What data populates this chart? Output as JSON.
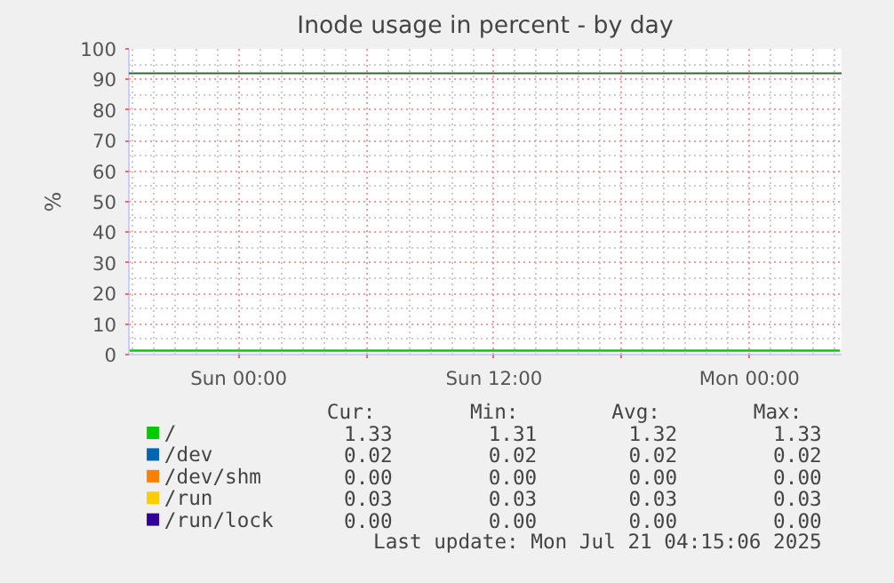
{
  "chart_data": {
    "type": "line",
    "title": "Inode usage in percent - by day",
    "ylabel": "%",
    "x": [
      "2025-07-19T18:50",
      "2025-07-21T04:15"
    ],
    "xlim": [
      "2025-07-19T18:50",
      "2025-07-21T04:20"
    ],
    "xticks": [
      {
        "value": "2025-07-20T00:00",
        "label": "Sun 00:00"
      },
      {
        "value": "2025-07-20T06:00",
        "label": null
      },
      {
        "value": "2025-07-20T12:00",
        "label": "Sun 12:00"
      },
      {
        "value": "2025-07-20T18:00",
        "label": null
      },
      {
        "value": "2025-07-21T00:00",
        "label": "Mon 00:00"
      }
    ],
    "ylim": [
      0,
      100
    ],
    "yticks": [
      0,
      10,
      20,
      30,
      40,
      50,
      60,
      70,
      80,
      90,
      100
    ],
    "grid": true,
    "legend": "bottom",
    "series": [
      {
        "name": "/",
        "color": "#00cc00",
        "values": [
          1.3,
          1.3
        ]
      },
      {
        "name": "/dev",
        "color": "#0066b3",
        "values": [
          null,
          null
        ]
      },
      {
        "name": "/dev/shm",
        "color": "#ff7f00",
        "values": [
          null,
          null
        ]
      },
      {
        "name": "/run",
        "color": "#ffcc00",
        "values": [
          null,
          null
        ]
      },
      {
        "name": "/run/lock",
        "color": "#330099",
        "values": [
          null,
          null
        ]
      }
    ],
    "ref_lines": [
      {
        "axis": "y",
        "value": 92,
        "color": "#336633"
      }
    ],
    "annotations": [
      "Cur:",
      "Min:",
      "Avg:",
      "Max:",
      "1.33",
      "1.31",
      "1.32",
      "1.33",
      "0.02",
      "0.02",
      "0.02",
      "0.02",
      "0.00",
      "0.00",
      "0.00",
      "0.00",
      "0.03",
      "0.03",
      "0.03",
      "0.03",
      "0.00",
      "0.00",
      "0.00",
      "0.00",
      "Last update: Mon Jul 21 04:15:06 2025"
    ]
  }
}
